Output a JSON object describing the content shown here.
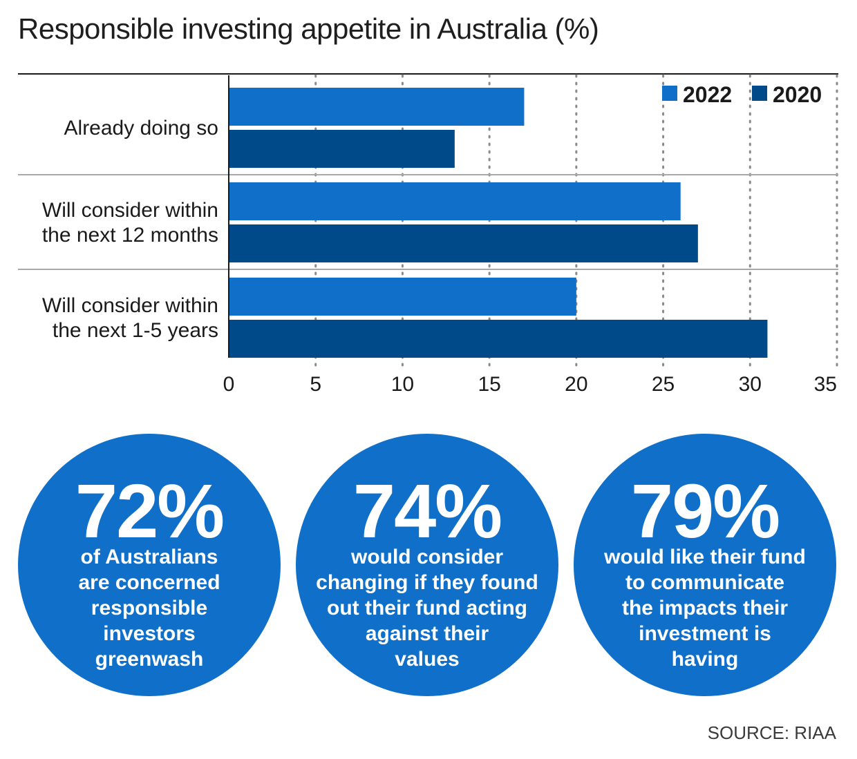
{
  "title": "Responsible investing appetite in Australia (%)",
  "chart_data": {
    "type": "bar",
    "orientation": "horizontal",
    "title": "Responsible investing appetite in Australia (%)",
    "categories": [
      [
        "Already doing so"
      ],
      [
        "Will consider within",
        "the next 12 months"
      ],
      [
        "Will consider within",
        "the next 1-5 years"
      ]
    ],
    "series": [
      {
        "name": "2022",
        "color": "#1070c9",
        "values": [
          17,
          26,
          20
        ]
      },
      {
        "name": "2020",
        "color": "#004a8a",
        "values": [
          13,
          27,
          31
        ]
      }
    ],
    "xlim": [
      0,
      35
    ],
    "xticks": [
      0,
      5,
      10,
      15,
      20,
      25,
      30,
      35
    ],
    "grid": "vertical-dotted",
    "legend": "top-right",
    "xlabel": "",
    "ylabel": ""
  },
  "stats": [
    {
      "value": "72%",
      "text": [
        "of Australians",
        "are concerned",
        "responsible",
        "investors",
        "greenwash"
      ]
    },
    {
      "value": "74%",
      "text": [
        "would consider",
        "changing if they found",
        "out their fund acting",
        "against their",
        "values"
      ]
    },
    {
      "value": "79%",
      "text": [
        "would like their fund",
        "to communicate",
        "the impacts their",
        "investment is",
        "having"
      ]
    }
  ],
  "colors": {
    "circle": "#1070c9",
    "series_2022": "#1070c9",
    "series_2020": "#004a8a"
  },
  "source": "SOURCE: RIAA"
}
